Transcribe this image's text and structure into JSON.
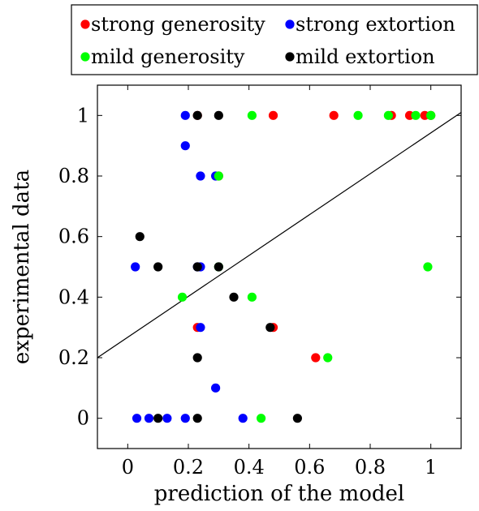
{
  "chart_data": {
    "type": "scatter",
    "xlabel": "prediction of the model",
    "ylabel": "experimental data",
    "xlim": [
      -0.1,
      1.1
    ],
    "ylim": [
      -0.1,
      1.1
    ],
    "xticks": [
      0,
      0.2,
      0.4,
      0.6,
      0.8,
      1
    ],
    "xtick_labels": [
      "0",
      "0.2",
      "0.4",
      "0.6",
      "0.8",
      "1"
    ],
    "yticks": [
      0,
      0.2,
      0.4,
      0.6,
      0.8,
      1
    ],
    "ytick_labels": [
      "0",
      "0.2",
      "0.4",
      "0.6",
      "0.8",
      "1"
    ],
    "grid": false,
    "legend_position": "top",
    "series": [
      {
        "name": "strong generosity",
        "color": "#ff0000",
        "points": [
          [
            0.23,
            1
          ],
          [
            0.48,
            1
          ],
          [
            0.68,
            1
          ],
          [
            0.87,
            1
          ],
          [
            0.93,
            1
          ],
          [
            0.98,
            1
          ],
          [
            1.0,
            1
          ],
          [
            0.3,
            0.8
          ],
          [
            0.23,
            0.3
          ],
          [
            0.48,
            0.3
          ],
          [
            0.62,
            0.2
          ]
        ]
      },
      {
        "name": "strong extortion",
        "color": "#0000ff",
        "points": [
          [
            0.19,
            1
          ],
          [
            0.19,
            0.9
          ],
          [
            0.24,
            0.8
          ],
          [
            0.29,
            0.8
          ],
          [
            0.025,
            0.5
          ],
          [
            0.23,
            0.5
          ],
          [
            0.24,
            0.5
          ],
          [
            0.24,
            0.3
          ],
          [
            0.29,
            0.1
          ],
          [
            0.03,
            0
          ],
          [
            0.07,
            0
          ],
          [
            0.13,
            0
          ],
          [
            0.19,
            0
          ],
          [
            0.38,
            0
          ]
        ]
      },
      {
        "name": "mild generosity",
        "color": "#00ff00",
        "points": [
          [
            0.41,
            1
          ],
          [
            0.76,
            1
          ],
          [
            0.86,
            1
          ],
          [
            0.95,
            1
          ],
          [
            1.0,
            1
          ],
          [
            0.3,
            0.8
          ],
          [
            0.3,
            0.5
          ],
          [
            0.99,
            0.5
          ],
          [
            0.18,
            0.4
          ],
          [
            0.41,
            0.4
          ],
          [
            0.66,
            0.2
          ],
          [
            0.44,
            0
          ]
        ]
      },
      {
        "name": "mild extortion",
        "color": "#000000",
        "points": [
          [
            0.23,
            1
          ],
          [
            0.3,
            1
          ],
          [
            0.04,
            0.6
          ],
          [
            0.1,
            0.5
          ],
          [
            0.23,
            0.5
          ],
          [
            0.3,
            0.5
          ],
          [
            0.35,
            0.4
          ],
          [
            0.47,
            0.3
          ],
          [
            0.23,
            0.2
          ],
          [
            0.1,
            0
          ],
          [
            0.23,
            0
          ],
          [
            0.56,
            0
          ]
        ]
      }
    ],
    "reference_line": {
      "points": [
        [
          -0.1,
          0.2
        ],
        [
          1.1,
          1.01
        ]
      ]
    }
  }
}
